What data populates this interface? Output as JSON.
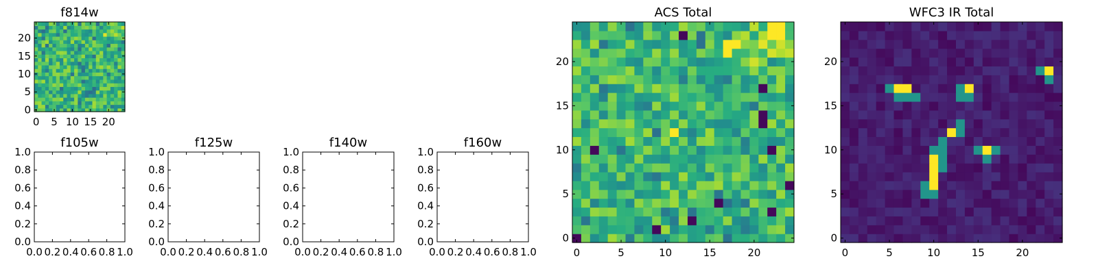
{
  "chart_data": [
    {
      "type": "heatmap",
      "title": "f814w",
      "colormap": "viridis",
      "grid_size": [
        25,
        25
      ],
      "xticks": [
        0,
        5,
        10,
        15,
        20
      ],
      "yticks": [
        0,
        5,
        10,
        15,
        20
      ],
      "xlim": [
        -0.5,
        24.5
      ],
      "ylim": [
        -0.5,
        24.5
      ],
      "values_note": "low-contrast noise field (green/yellow); brightest near top-right corner (x 20-24, y 22-24)"
    },
    {
      "type": "empty",
      "title": "f105w",
      "xticks": [
        "0.0",
        "0.2",
        "0.4",
        "0.6",
        "0.8",
        "1.0"
      ],
      "yticks": [
        "0.0",
        "0.2",
        "0.4",
        "0.6",
        "0.8",
        "1.0"
      ],
      "xlim": [
        0,
        1
      ],
      "ylim": [
        0,
        1
      ]
    },
    {
      "type": "empty",
      "title": "f125w",
      "xticks": [
        "0.0",
        "0.2",
        "0.4",
        "0.6",
        "0.8",
        "1.0"
      ],
      "yticks": [
        "0.0",
        "0.2",
        "0.4",
        "0.6",
        "0.8",
        "1.0"
      ],
      "xlim": [
        0,
        1
      ],
      "ylim": [
        0,
        1
      ]
    },
    {
      "type": "empty",
      "title": "f140w",
      "xticks": [
        "0.0",
        "0.2",
        "0.4",
        "0.6",
        "0.8",
        "1.0"
      ],
      "yticks": [
        "0.0",
        "0.2",
        "0.4",
        "0.6",
        "0.8",
        "1.0"
      ],
      "xlim": [
        0,
        1
      ],
      "ylim": [
        0,
        1
      ]
    },
    {
      "type": "empty",
      "title": "f160w",
      "xticks": [
        "0.0",
        "0.2",
        "0.4",
        "0.6",
        "0.8",
        "1.0"
      ],
      "yticks": [
        "0.0",
        "0.2",
        "0.4",
        "0.6",
        "0.8",
        "1.0"
      ],
      "xlim": [
        0,
        1
      ],
      "ylim": [
        0,
        1
      ]
    },
    {
      "type": "heatmap",
      "title": "ACS Total",
      "colormap": "viridis",
      "grid_size": [
        25,
        25
      ],
      "xticks": [
        0,
        5,
        10,
        15,
        20
      ],
      "yticks": [
        0,
        5,
        10,
        15,
        20
      ],
      "xlim": [
        -0.5,
        24.5
      ],
      "ylim": [
        -0.5,
        24.5
      ],
      "values_note": "noise field, mostly green/yellow; brightest near top-right; scattered dark pixels",
      "bright_pixels": [
        [
          22,
          24
        ],
        [
          23,
          24
        ],
        [
          22,
          23
        ],
        [
          23,
          23
        ],
        [
          17,
          22
        ],
        [
          18,
          22
        ],
        [
          17,
          21
        ],
        [
          11,
          12
        ]
      ],
      "dark_pixels": [
        [
          2,
          10
        ],
        [
          22,
          10
        ],
        [
          0,
          0
        ],
        [
          21,
          17
        ],
        [
          21,
          14
        ],
        [
          21,
          13
        ],
        [
          16,
          4
        ],
        [
          22,
          3
        ],
        [
          13,
          2
        ],
        [
          9,
          1
        ],
        [
          24,
          6
        ],
        [
          12,
          23
        ]
      ]
    },
    {
      "type": "heatmap",
      "title": "WFC3 IR Total",
      "colormap": "viridis",
      "grid_size": [
        25,
        25
      ],
      "xticks": [
        0,
        5,
        10,
        15,
        20
      ],
      "yticks": [
        0,
        5,
        10,
        15,
        20
      ],
      "xlim": [
        -0.5,
        24.5
      ],
      "ylim": [
        -0.5,
        24.5
      ],
      "values_note": "dark purple background with a few bright compact sources",
      "bright_pixels": [
        [
          6,
          17
        ],
        [
          7,
          17
        ],
        [
          14,
          17
        ],
        [
          23,
          19
        ],
        [
          12,
          12
        ],
        [
          16,
          10
        ],
        [
          10,
          9
        ],
        [
          10,
          8
        ],
        [
          10,
          7
        ],
        [
          10,
          6
        ]
      ],
      "teal_pixels": [
        [
          5,
          17
        ],
        [
          6,
          16
        ],
        [
          7,
          16
        ],
        [
          8,
          16
        ],
        [
          13,
          17
        ],
        [
          13,
          16
        ],
        [
          14,
          16
        ],
        [
          22,
          19
        ],
        [
          23,
          18
        ],
        [
          13,
          13
        ],
        [
          13,
          12
        ],
        [
          11,
          11
        ],
        [
          10,
          10
        ],
        [
          11,
          10
        ],
        [
          15,
          10
        ],
        [
          17,
          10
        ],
        [
          16,
          9
        ],
        [
          9,
          6
        ],
        [
          9,
          5
        ],
        [
          10,
          5
        ],
        [
          11,
          8
        ],
        [
          11,
          9
        ]
      ]
    }
  ]
}
